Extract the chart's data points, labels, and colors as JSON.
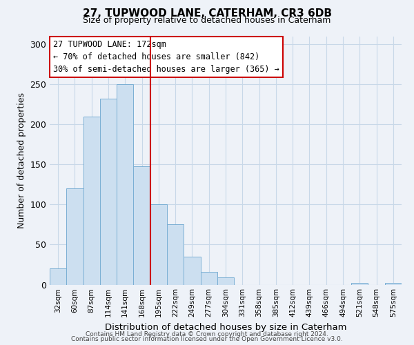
{
  "title": "27, TUPWOOD LANE, CATERHAM, CR3 6DB",
  "subtitle": "Size of property relative to detached houses in Caterham",
  "xlabel": "Distribution of detached houses by size in Caterham",
  "ylabel": "Number of detached properties",
  "bin_labels": [
    "32sqm",
    "60sqm",
    "87sqm",
    "114sqm",
    "141sqm",
    "168sqm",
    "195sqm",
    "222sqm",
    "249sqm",
    "277sqm",
    "304sqm",
    "331sqm",
    "358sqm",
    "385sqm",
    "412sqm",
    "439sqm",
    "466sqm",
    "494sqm",
    "521sqm",
    "548sqm",
    "575sqm"
  ],
  "bar_heights": [
    20,
    120,
    210,
    232,
    250,
    148,
    100,
    75,
    35,
    16,
    9,
    0,
    0,
    0,
    0,
    0,
    0,
    0,
    2,
    0,
    2
  ],
  "bar_color": "#ccdff0",
  "bar_edge_color": "#7aafd4",
  "vline_x": 5.5,
  "vline_color": "#cc0000",
  "annotation_text": "27 TUPWOOD LANE: 172sqm\n← 70% of detached houses are smaller (842)\n30% of semi-detached houses are larger (365) →",
  "annotation_box_color": "#ffffff",
  "annotation_box_edge_color": "#cc0000",
  "ylim": [
    0,
    310
  ],
  "yticks": [
    0,
    50,
    100,
    150,
    200,
    250,
    300
  ],
  "footer_line1": "Contains HM Land Registry data © Crown copyright and database right 2024.",
  "footer_line2": "Contains public sector information licensed under the Open Government Licence v3.0.",
  "background_color": "#eef2f8",
  "plot_background_color": "#eef2f8",
  "grid_color": "#c8d8e8"
}
